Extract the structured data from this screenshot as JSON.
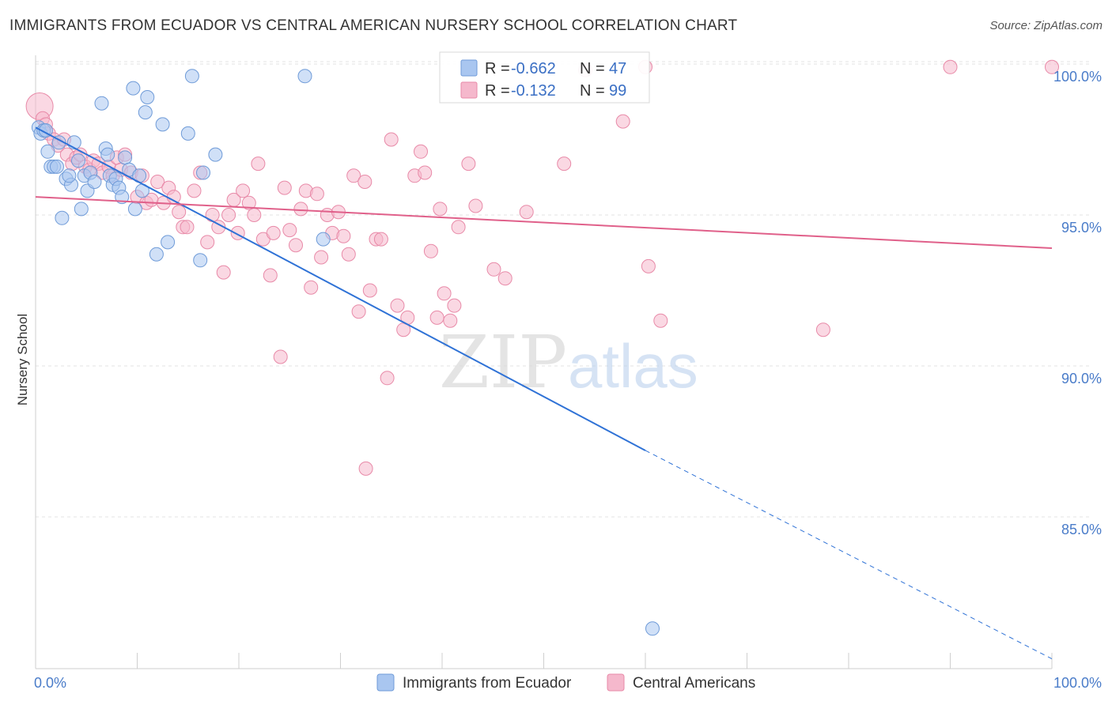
{
  "header": {
    "title": "IMMIGRANTS FROM ECUADOR VS CENTRAL AMERICAN NURSERY SCHOOL CORRELATION CHART",
    "source": "Source: ZipAtlas.com"
  },
  "watermark": {
    "zip": "ZIP",
    "atlas": "atlas"
  },
  "legend_top": {
    "r_label": "R =",
    "n_label": "N =",
    "rows": [
      {
        "r": "-0.662",
        "n": "47",
        "color": "#a9c6f0"
      },
      {
        "r": "-0.132",
        "n": "99",
        "color": "#f5b8cc"
      }
    ]
  },
  "chart_data": {
    "type": "scatter",
    "title": "IMMIGRANTS FROM ECUADOR VS CENTRAL AMERICAN NURSERY SCHOOL CORRELATION CHART",
    "xlabel": "",
    "ylabel": "Nursery School",
    "xlim": [
      0,
      100
    ],
    "ylim": [
      80.5,
      100.8
    ],
    "x_tick_labels": [
      "0.0%",
      "100.0%"
    ],
    "y_ticks": [
      {
        "value": 100,
        "label": "100.0%"
      },
      {
        "value": 95,
        "label": "95.0%"
      },
      {
        "value": 90,
        "label": "90.0%"
      },
      {
        "value": 85,
        "label": "85.0%"
      }
    ],
    "grid": true,
    "legend_position": "top-center",
    "series": [
      {
        "name": "Immigrants from Ecuador",
        "color": "#a9c6f0",
        "stroke": "#6f9bd8",
        "r": -0.662,
        "n": 47,
        "trend": {
          "x0": 0,
          "y0": 97.9,
          "x1": 60,
          "y1": 87.2,
          "dash_to_x": 100,
          "dash_to_y": 80.3,
          "color": "#2f72d6"
        },
        "points": [
          [
            0.3,
            97.9
          ],
          [
            0.5,
            97.7
          ],
          [
            0.8,
            97.8
          ],
          [
            1.2,
            97.1
          ],
          [
            1.5,
            96.6
          ],
          [
            1.8,
            96.6
          ],
          [
            2.3,
            97.4
          ],
          [
            2.6,
            94.9
          ],
          [
            3.0,
            96.2
          ],
          [
            3.5,
            96.0
          ],
          [
            3.8,
            97.4
          ],
          [
            4.2,
            96.8
          ],
          [
            4.5,
            95.2
          ],
          [
            4.8,
            96.3
          ],
          [
            5.1,
            95.8
          ],
          [
            5.4,
            96.4
          ],
          [
            5.8,
            96.1
          ],
          [
            6.5,
            98.7
          ],
          [
            6.9,
            97.2
          ],
          [
            7.1,
            97.0
          ],
          [
            7.3,
            96.3
          ],
          [
            7.6,
            96.0
          ],
          [
            7.9,
            96.2
          ],
          [
            8.2,
            95.9
          ],
          [
            8.5,
            95.6
          ],
          [
            8.8,
            96.9
          ],
          [
            9.2,
            96.5
          ],
          [
            9.6,
            99.2
          ],
          [
            9.8,
            95.2
          ],
          [
            10.2,
            96.3
          ],
          [
            10.5,
            95.8
          ],
          [
            10.8,
            98.4
          ],
          [
            11.0,
            98.9
          ],
          [
            11.9,
            93.7
          ],
          [
            12.5,
            98.0
          ],
          [
            13.0,
            94.1
          ],
          [
            15.0,
            97.7
          ],
          [
            15.4,
            99.6
          ],
          [
            16.2,
            93.5
          ],
          [
            16.5,
            96.4
          ],
          [
            17.7,
            97.0
          ],
          [
            26.5,
            99.6
          ],
          [
            28.3,
            94.2
          ],
          [
            60.7,
            81.3
          ],
          [
            1.0,
            97.8
          ],
          [
            2.1,
            96.6
          ],
          [
            3.3,
            96.3
          ]
        ]
      },
      {
        "name": "Central Americans",
        "color": "#f5b8cc",
        "stroke": "#e88aa8",
        "r": -0.132,
        "n": 99,
        "trend": {
          "x0": 0,
          "y0": 95.6,
          "x1": 100,
          "y1": 93.9,
          "color": "#e0608a"
        },
        "points": [
          [
            0.4,
            98.6
          ],
          [
            0.7,
            98.2
          ],
          [
            1.0,
            98.0
          ],
          [
            1.3,
            97.7
          ],
          [
            1.8,
            97.5
          ],
          [
            2.2,
            97.3
          ],
          [
            2.8,
            97.5
          ],
          [
            3.1,
            97.0
          ],
          [
            3.6,
            96.7
          ],
          [
            4.0,
            96.9
          ],
          [
            4.4,
            97.0
          ],
          [
            4.9,
            96.6
          ],
          [
            5.3,
            96.5
          ],
          [
            5.7,
            96.8
          ],
          [
            6.2,
            96.7
          ],
          [
            6.6,
            96.4
          ],
          [
            7.2,
            96.6
          ],
          [
            7.6,
            96.3
          ],
          [
            8.0,
            96.9
          ],
          [
            8.4,
            96.5
          ],
          [
            8.8,
            97.0
          ],
          [
            9.4,
            96.4
          ],
          [
            10.0,
            95.6
          ],
          [
            10.5,
            96.3
          ],
          [
            10.9,
            95.4
          ],
          [
            11.4,
            95.5
          ],
          [
            12.0,
            96.1
          ],
          [
            12.6,
            95.4
          ],
          [
            13.1,
            95.9
          ],
          [
            13.6,
            95.6
          ],
          [
            14.1,
            95.1
          ],
          [
            14.5,
            94.6
          ],
          [
            14.9,
            94.6
          ],
          [
            15.6,
            95.8
          ],
          [
            16.2,
            96.4
          ],
          [
            16.9,
            94.1
          ],
          [
            17.4,
            95.0
          ],
          [
            18.0,
            94.6
          ],
          [
            18.5,
            93.1
          ],
          [
            19.0,
            95.0
          ],
          [
            19.5,
            95.5
          ],
          [
            19.9,
            94.4
          ],
          [
            20.4,
            95.8
          ],
          [
            21.0,
            95.4
          ],
          [
            21.5,
            95.0
          ],
          [
            21.9,
            96.7
          ],
          [
            22.4,
            94.2
          ],
          [
            23.1,
            93.0
          ],
          [
            23.4,
            94.4
          ],
          [
            24.1,
            90.3
          ],
          [
            24.5,
            95.9
          ],
          [
            25.0,
            94.5
          ],
          [
            25.6,
            94.0
          ],
          [
            26.1,
            95.2
          ],
          [
            26.6,
            95.8
          ],
          [
            27.1,
            92.6
          ],
          [
            27.7,
            95.7
          ],
          [
            28.1,
            93.6
          ],
          [
            28.7,
            95.0
          ],
          [
            29.2,
            94.4
          ],
          [
            29.8,
            95.1
          ],
          [
            30.3,
            94.3
          ],
          [
            30.8,
            93.7
          ],
          [
            31.3,
            96.3
          ],
          [
            31.8,
            91.8
          ],
          [
            32.4,
            96.1
          ],
          [
            32.9,
            92.5
          ],
          [
            33.5,
            94.2
          ],
          [
            34.0,
            94.2
          ],
          [
            34.6,
            89.6
          ],
          [
            35.0,
            97.5
          ],
          [
            35.6,
            92.0
          ],
          [
            36.2,
            91.2
          ],
          [
            36.6,
            91.6
          ],
          [
            37.3,
            96.3
          ],
          [
            37.9,
            97.1
          ],
          [
            38.3,
            96.4
          ],
          [
            38.9,
            93.8
          ],
          [
            39.5,
            91.6
          ],
          [
            39.8,
            95.2
          ],
          [
            40.2,
            92.4
          ],
          [
            40.8,
            91.5
          ],
          [
            41.2,
            92.0
          ],
          [
            41.6,
            94.6
          ],
          [
            42.6,
            96.7
          ],
          [
            43.3,
            95.3
          ],
          [
            45.1,
            93.2
          ],
          [
            46.2,
            92.9
          ],
          [
            48.3,
            95.1
          ],
          [
            52.0,
            96.7
          ],
          [
            54.1,
            99.8
          ],
          [
            57.8,
            98.1
          ],
          [
            60.0,
            99.9
          ],
          [
            60.3,
            93.3
          ],
          [
            61.5,
            91.5
          ],
          [
            77.5,
            91.2
          ],
          [
            90.0,
            99.9
          ],
          [
            100.0,
            99.9
          ],
          [
            32.5,
            86.6
          ]
        ]
      }
    ]
  },
  "legend_bottom": {
    "items": [
      {
        "label": "Immigrants from Ecuador",
        "color": "#a9c6f0",
        "stroke": "#6f9bd8"
      },
      {
        "label": "Central Americans",
        "color": "#f5b8cc",
        "stroke": "#e88aa8"
      }
    ]
  }
}
